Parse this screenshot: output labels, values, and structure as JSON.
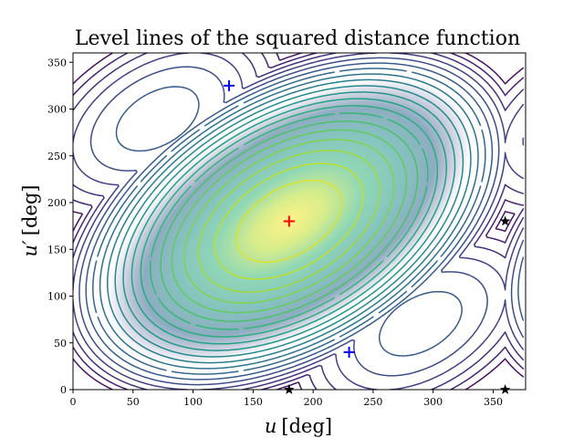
{
  "chart_data": {
    "type": "contour",
    "title": "Level lines of the squared distance function",
    "xlabel": "u",
    "xlabel_unit": "[deg]",
    "ylabel": "u′",
    "ylabel_unit": "[deg]",
    "xlim": [
      0,
      377
    ],
    "ylim": [
      0,
      360
    ],
    "xticks": [
      0,
      50,
      100,
      150,
      200,
      250,
      300,
      350
    ],
    "yticks": [
      0,
      50,
      100,
      150,
      200,
      250,
      300,
      350
    ],
    "grid": false,
    "contour_levels": 20,
    "colormap": "viridis",
    "center": [
      180,
      180
    ],
    "markers": [
      {
        "name": "red-plus",
        "shape": "plus",
        "color": "#ff0000",
        "x": 180,
        "y": 180
      },
      {
        "name": "blue-plus-1",
        "shape": "plus",
        "color": "#0000ff",
        "x": 130,
        "y": 325
      },
      {
        "name": "blue-plus-2",
        "shape": "plus",
        "color": "#0000ff",
        "x": 230,
        "y": 40
      },
      {
        "name": "star-1",
        "shape": "star",
        "color": "#000000",
        "x": 360,
        "y": 180
      },
      {
        "name": "star-2",
        "shape": "star",
        "color": "#000000",
        "x": 360,
        "y": 0
      },
      {
        "name": "star-3",
        "shape": "star",
        "color": "#000000",
        "x": 180,
        "y": 0
      }
    ]
  }
}
